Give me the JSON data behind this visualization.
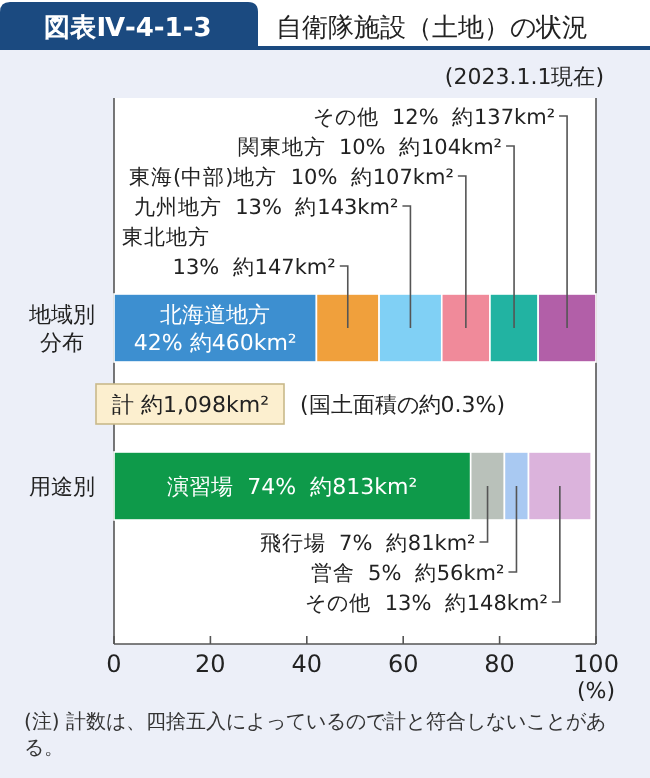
{
  "chart_data": {
    "type": "bar",
    "orientation": "horizontal",
    "stacked": true,
    "title": "図表Ⅳ-4-1-3",
    "subtitle": "自衛隊施設（土地）の状況",
    "xlabel": "(%)",
    "categories": [
      "地域別分布",
      "用途別"
    ],
    "xlim": [
      0,
      100
    ],
    "xticks": [
      0,
      20,
      40,
      60,
      80,
      100
    ],
    "series": [
      {
        "color": "#3d8fd0",
        "values": [
          42,
          null
        ],
        "value_labels": [
          "北海道地方 42%  約460km²",
          null
        ]
      },
      {
        "color": "#f0a03c",
        "values": [
          13,
          null
        ],
        "value_labels": [
          "東北地方 13%  約147km²",
          null
        ]
      },
      {
        "color": "#80d0f5",
        "values": [
          13,
          null
        ],
        "value_labels": [
          "九州地方  13%  約143km²",
          null
        ]
      },
      {
        "color": "#f08a9a",
        "values": [
          10,
          null
        ],
        "value_labels": [
          "東海(中部)地方  10%  約107km²",
          null
        ]
      },
      {
        "color": "#22b3a2",
        "values": [
          10,
          null
        ],
        "value_labels": [
          "関東地方  10%  約104km²",
          null
        ]
      },
      {
        "color": "#b25fa8",
        "values": [
          12,
          null
        ],
        "value_labels": [
          "その他  12%  約137km²",
          null
        ]
      },
      {
        "color": "#0e9a4a",
        "values": [
          null,
          74
        ],
        "value_labels": [
          null,
          "演習場  74%  約813km²"
        ]
      },
      {
        "color": "#b9c1ba",
        "values": [
          null,
          7
        ],
        "value_labels": [
          null,
          "飛行場  7%  約81km²"
        ]
      },
      {
        "color": "#a9c9f2",
        "values": [
          null,
          5
        ],
        "value_labels": [
          null,
          "営舎  5%  約56km²"
        ]
      },
      {
        "color": "#dbb3dc",
        "values": [
          null,
          13
        ],
        "value_labels": [
          null,
          "その他  13%  約148km²"
        ]
      }
    ],
    "annotations": [
      "(2023.1.1現在)",
      "計 約1,098km²",
      "(国土面積の約0.3%)",
      "(注) 計数は、四捨五入によっているので計と符合しないことがある。"
    ]
  }
}
